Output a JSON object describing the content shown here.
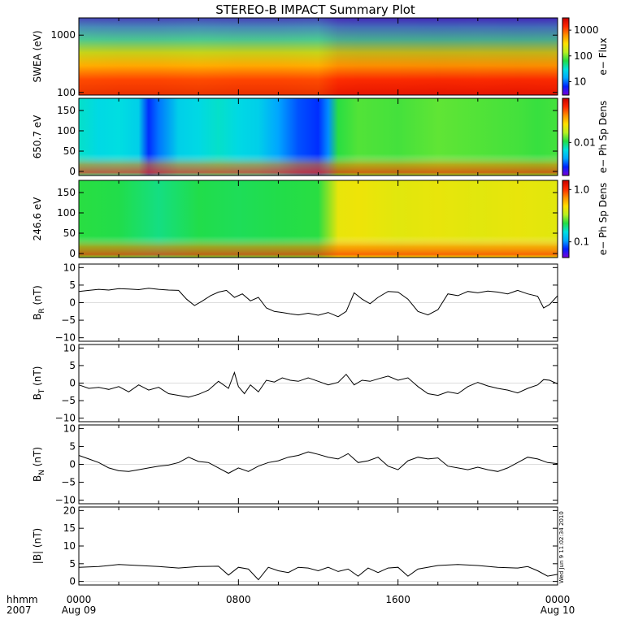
{
  "title": "STEREO-B IMPACT Summary Plot",
  "stamp": "Wed Jun  9 11:02:34 2010",
  "time_axis": {
    "corner_label_top": "hhmm",
    "corner_label_bottom": "2007",
    "ticks": [
      {
        "hour": 0,
        "label": "0000",
        "date": "Aug 09"
      },
      {
        "hour": 8,
        "label": "0800",
        "date": ""
      },
      {
        "hour": 16,
        "label": "1600",
        "date": ""
      },
      {
        "hour": 24,
        "label": "0000",
        "date": "Aug 10"
      }
    ]
  },
  "chart_data": [
    {
      "type": "heatmap",
      "name": "swea",
      "ylabel": "SWEA (eV)",
      "ylog": true,
      "ylim": [
        90,
        2000
      ],
      "yticks": [
        {
          "v": 100,
          "label": "100"
        },
        {
          "v": 1000,
          "label": "1000"
        }
      ],
      "colorbar": {
        "label": "e− Flux",
        "log": true,
        "range": [
          3,
          3000
        ],
        "ticks": [
          {
            "v": 10,
            "label": "10"
          },
          {
            "v": 100,
            "label": "100"
          },
          {
            "v": 1000,
            "label": "1000"
          }
        ]
      },
      "t": [
        0,
        2,
        4,
        6,
        8,
        10,
        12,
        13,
        14,
        16,
        18,
        20,
        22,
        24
      ],
      "level": [
        0.78,
        0.8,
        0.8,
        0.78,
        0.8,
        0.8,
        0.78,
        0.9,
        0.92,
        0.92,
        0.93,
        0.92,
        0.93,
        0.92
      ]
    },
    {
      "type": "heatmap",
      "name": "pad650",
      "ylabel": "650.7 eV",
      "ylim": [
        -10,
        180
      ],
      "yticks": [
        {
          "v": 0,
          "label": "0"
        },
        {
          "v": 50,
          "label": "50"
        },
        {
          "v": 100,
          "label": "100"
        },
        {
          "v": 150,
          "label": "150"
        }
      ],
      "colorbar": {
        "label": "e− Ph Sp Dens",
        "log": true,
        "range": [
          0.003,
          0.05
        ],
        "ticks": [
          {
            "v": 0.01,
            "label": "0.01"
          }
        ]
      },
      "t": [
        0,
        1,
        2,
        3,
        3.5,
        4,
        5,
        6,
        7,
        8,
        9,
        10,
        11,
        12,
        12.5,
        13,
        14,
        16,
        18,
        20,
        22,
        23,
        24
      ],
      "level": [
        0.35,
        0.32,
        0.33,
        0.3,
        0.12,
        0.18,
        0.3,
        0.32,
        0.35,
        0.32,
        0.3,
        0.22,
        0.15,
        0.12,
        0.2,
        0.45,
        0.48,
        0.47,
        0.49,
        0.48,
        0.47,
        0.46,
        0.47
      ]
    },
    {
      "type": "heatmap",
      "name": "pad246",
      "ylabel": "246.6 eV",
      "ylim": [
        -10,
        180
      ],
      "yticks": [
        {
          "v": 0,
          "label": "0"
        },
        {
          "v": 50,
          "label": "50"
        },
        {
          "v": 100,
          "label": "100"
        },
        {
          "v": 150,
          "label": "150"
        }
      ],
      "colorbar": {
        "label": "e− Ph Sp Dens",
        "log": true,
        "range": [
          0.05,
          1.5
        ],
        "ticks": [
          {
            "v": 0.1,
            "label": "0.1"
          },
          {
            "v": 1.0,
            "label": "1.0"
          }
        ]
      },
      "t": [
        0,
        2,
        3,
        4,
        6,
        8,
        10,
        12,
        13,
        14,
        16,
        18,
        20,
        22,
        24
      ],
      "level": [
        0.45,
        0.44,
        0.42,
        0.4,
        0.44,
        0.43,
        0.44,
        0.45,
        0.63,
        0.64,
        0.62,
        0.63,
        0.62,
        0.63,
        0.62
      ]
    },
    {
      "type": "line",
      "name": "BR",
      "ylabel_base": "B",
      "ylabel_sub": "R",
      "ylabel_unit": " (nT)",
      "ylim": [
        -11,
        11
      ],
      "yticks": [
        {
          "v": -10,
          "label": "−10"
        },
        {
          "v": -5,
          "label": "−5"
        },
        {
          "v": 0,
          "label": "0"
        },
        {
          "v": 5,
          "label": "5"
        },
        {
          "v": 10,
          "label": "10"
        }
      ],
      "x": [
        0,
        0.5,
        1,
        1.5,
        2,
        2.5,
        3,
        3.5,
        4,
        4.5,
        5,
        5.4,
        5.8,
        6.2,
        6.6,
        7,
        7.4,
        7.8,
        8.2,
        8.6,
        9,
        9.4,
        9.8,
        10.2,
        10.6,
        11,
        11.5,
        12,
        12.5,
        13,
        13.4,
        13.8,
        14.2,
        14.6,
        15,
        15.5,
        16,
        16.5,
        17,
        17.5,
        18,
        18.5,
        19,
        19.5,
        20,
        20.5,
        21,
        21.5,
        22,
        22.5,
        23,
        23.3,
        23.6,
        24
      ],
      "y": [
        3.2,
        3.5,
        3.8,
        3.6,
        4.0,
        3.9,
        3.7,
        4.1,
        3.8,
        3.6,
        3.5,
        1.0,
        -0.8,
        0.5,
        2.0,
        3.0,
        3.5,
        1.5,
        2.5,
        0.5,
        1.5,
        -1.5,
        -2.5,
        -2.8,
        -3.2,
        -3.5,
        -3.0,
        -3.6,
        -2.8,
        -4.0,
        -2.5,
        2.8,
        1.0,
        -0.3,
        1.5,
        3.2,
        3.0,
        1.0,
        -2.5,
        -3.5,
        -2.0,
        2.5,
        2.0,
        3.2,
        2.8,
        3.3,
        3.0,
        2.5,
        3.5,
        2.5,
        1.8,
        -1.5,
        -0.5,
        2.0
      ]
    },
    {
      "type": "line",
      "name": "BT",
      "ylabel_base": "B",
      "ylabel_sub": "T",
      "ylabel_unit": " (nT)",
      "ylim": [
        -11,
        11
      ],
      "yticks": [
        {
          "v": -10,
          "label": "−10"
        },
        {
          "v": -5,
          "label": "−5"
        },
        {
          "v": 0,
          "label": "0"
        },
        {
          "v": 5,
          "label": "5"
        },
        {
          "v": 10,
          "label": "10"
        }
      ],
      "x": [
        0,
        0.5,
        1,
        1.5,
        2,
        2.5,
        3,
        3.5,
        4,
        4.5,
        5,
        5.5,
        6,
        6.5,
        7,
        7.5,
        7.8,
        8.0,
        8.3,
        8.6,
        9,
        9.4,
        9.8,
        10.2,
        10.6,
        11,
        11.5,
        12,
        12.5,
        13,
        13.4,
        13.8,
        14.2,
        14.6,
        15,
        15.5,
        16,
        16.5,
        17,
        17.5,
        18,
        18.5,
        19,
        19.5,
        20,
        20.5,
        21,
        21.5,
        22,
        22.5,
        23,
        23.3,
        23.6,
        24
      ],
      "y": [
        -0.5,
        -1.5,
        -1.2,
        -1.8,
        -1.0,
        -2.5,
        -0.5,
        -2.0,
        -1.2,
        -3.0,
        -3.5,
        -4.0,
        -3.2,
        -2.0,
        0.5,
        -1.5,
        3.0,
        -1.0,
        -3.0,
        -0.5,
        -2.5,
        0.8,
        0.3,
        1.5,
        0.8,
        0.5,
        1.5,
        0.5,
        -0.5,
        0.2,
        2.5,
        -0.5,
        0.8,
        0.5,
        1.2,
        2.0,
        0.8,
        1.5,
        -1.0,
        -3.0,
        -3.5,
        -2.5,
        -3.0,
        -1.0,
        0.2,
        -0.8,
        -1.5,
        -2.0,
        -2.8,
        -1.5,
        -0.5,
        1.0,
        0.8,
        -0.2
      ]
    },
    {
      "type": "line",
      "name": "BN",
      "ylabel_base": "B",
      "ylabel_sub": "N",
      "ylabel_unit": " (nT)",
      "ylim": [
        -11,
        11
      ],
      "yticks": [
        {
          "v": -10,
          "label": "−10"
        },
        {
          "v": -5,
          "label": "−5"
        },
        {
          "v": 0,
          "label": "0"
        },
        {
          "v": 5,
          "label": "5"
        },
        {
          "v": 10,
          "label": "10"
        }
      ],
      "x": [
        0,
        0.5,
        1,
        1.5,
        2,
        2.5,
        3,
        3.5,
        4,
        4.5,
        5,
        5.5,
        6,
        6.5,
        7,
        7.5,
        8,
        8.5,
        9,
        9.5,
        10,
        10.5,
        11,
        11.5,
        12,
        12.5,
        13,
        13.5,
        14,
        14.5,
        15,
        15.5,
        16,
        16.5,
        17,
        17.5,
        18,
        18.5,
        19,
        19.5,
        20,
        20.5,
        21,
        21.5,
        22,
        22.5,
        23,
        23.5,
        24
      ],
      "y": [
        2.5,
        1.5,
        0.5,
        -1.0,
        -1.8,
        -2.0,
        -1.5,
        -1.0,
        -0.5,
        -0.2,
        0.5,
        2.0,
        0.8,
        0.5,
        -1.0,
        -2.5,
        -1.0,
        -2.0,
        -0.5,
        0.5,
        1.0,
        2.0,
        2.5,
        3.5,
        2.8,
        2.0,
        1.5,
        3.0,
        0.5,
        1.0,
        2.0,
        -0.5,
        -1.5,
        1.0,
        2.0,
        1.5,
        1.8,
        -0.5,
        -1.0,
        -1.5,
        -0.8,
        -1.5,
        -2.0,
        -1.0,
        0.5,
        2.0,
        1.5,
        0.5,
        0.2
      ]
    },
    {
      "type": "line",
      "name": "Bmag",
      "ylabel_base": "|B|",
      "ylabel_sub": "",
      "ylabel_unit": " (nT)",
      "ylim": [
        -1,
        21
      ],
      "yticks": [
        {
          "v": 0,
          "label": "0"
        },
        {
          "v": 5,
          "label": "5"
        },
        {
          "v": 10,
          "label": "10"
        },
        {
          "v": 15,
          "label": "15"
        },
        {
          "v": 20,
          "label": "20"
        }
      ],
      "x": [
        0,
        1,
        2,
        3,
        4,
        5,
        6,
        7,
        7.5,
        8,
        8.5,
        9,
        9.5,
        10,
        10.5,
        11,
        11.5,
        12,
        12.5,
        13,
        13.5,
        14,
        14.5,
        15,
        15.5,
        16,
        16.5,
        17,
        18,
        19,
        20,
        21,
        22,
        22.5,
        23,
        23.5,
        24
      ],
      "y": [
        4.0,
        4.2,
        4.8,
        4.5,
        4.2,
        3.8,
        4.2,
        4.3,
        1.8,
        4.0,
        3.5,
        0.5,
        4.0,
        3.0,
        2.5,
        4.0,
        3.8,
        3.0,
        4.0,
        2.8,
        3.5,
        1.5,
        3.8,
        2.5,
        3.8,
        4.0,
        1.5,
        3.5,
        4.5,
        4.8,
        4.5,
        4.0,
        3.8,
        4.2,
        3.0,
        1.5,
        2.0
      ]
    }
  ]
}
